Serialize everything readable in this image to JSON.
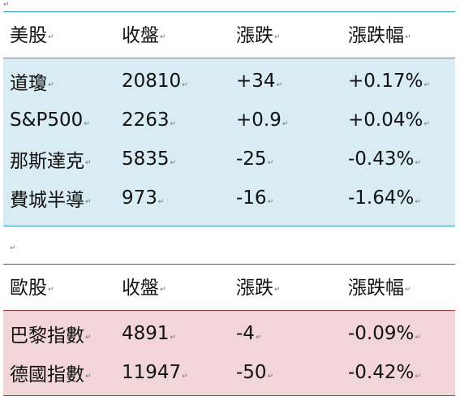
{
  "paragraph_mark": "↵",
  "cell_mark": "↵",
  "colors": {
    "us_fill": "#d9ecf3",
    "us_border": "#2f9bb2",
    "eu_fill": "#f2d5d6",
    "eu_border": "#a83a3a"
  },
  "us_table": {
    "header": [
      "美股",
      "收盤",
      "漲跌",
      "漲跌幅"
    ],
    "rows": [
      [
        "道瓊",
        "20810",
        "+34",
        "+0.17%"
      ],
      [
        "S&P500",
        "2263",
        "+0.9",
        "+0.04%"
      ],
      [
        "那斯達克",
        "5835",
        "-25",
        "-0.43%"
      ],
      [
        "費城半導",
        "973",
        "-16",
        "-1.64%"
      ]
    ]
  },
  "eu_table": {
    "header": [
      "歐股",
      "收盤",
      "漲跌",
      "漲跌幅"
    ],
    "rows": [
      [
        "巴黎指數",
        "4891",
        "-4",
        "-0.09%"
      ],
      [
        "德國指數",
        "11947",
        "-50",
        "-0.42%"
      ]
    ]
  }
}
